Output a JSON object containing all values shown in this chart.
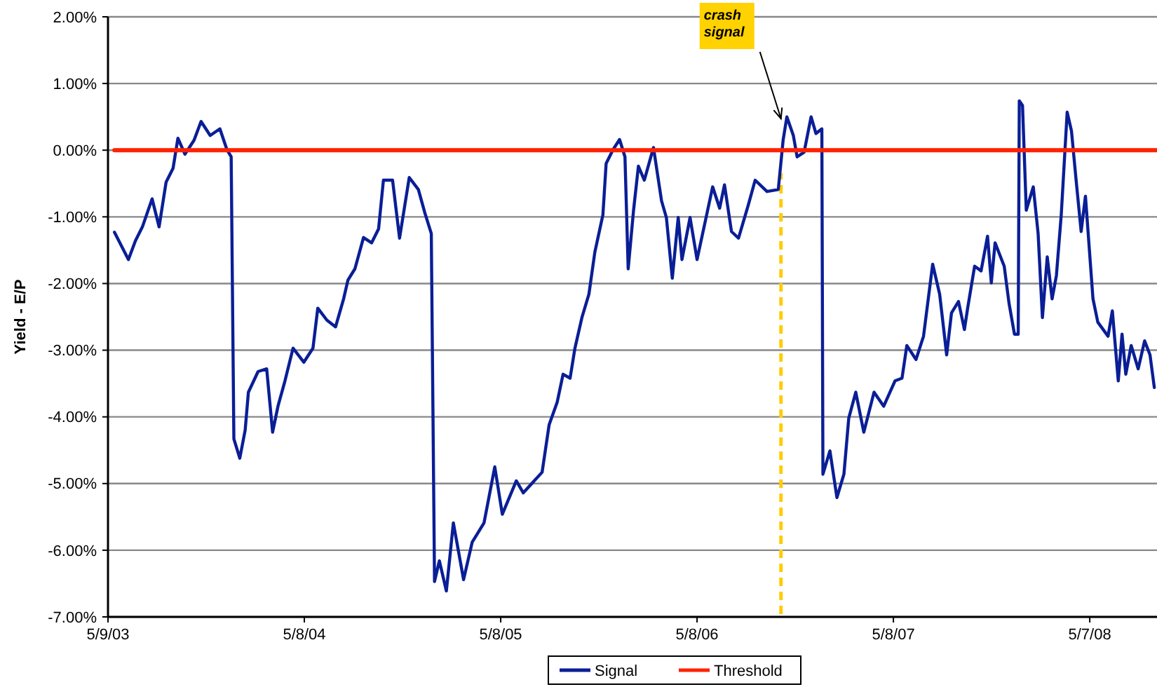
{
  "chart_data": {
    "type": "line",
    "ylabel": "Yield - E/P",
    "xlim": [
      "2003-05-09",
      "2008-09-09"
    ],
    "xticks": [
      {
        "value": "2003-05-09",
        "label": "5/9/03"
      },
      {
        "value": "2004-05-08",
        "label": "5/8/04"
      },
      {
        "value": "2005-05-08",
        "label": "5/8/05"
      },
      {
        "value": "2006-05-08",
        "label": "5/8/06"
      },
      {
        "value": "2007-05-08",
        "label": "5/8/07"
      },
      {
        "value": "2008-05-07",
        "label": "5/7/08"
      }
    ],
    "ylim": [
      -7,
      2
    ],
    "yticks": [
      {
        "value": -7,
        "label": "-7.00%"
      },
      {
        "value": -6,
        "label": "-6.00%"
      },
      {
        "value": -5,
        "label": "-5.00%"
      },
      {
        "value": -4,
        "label": "-4.00%"
      },
      {
        "value": -3,
        "label": "-3.00%"
      },
      {
        "value": -2,
        "label": "-2.00%"
      },
      {
        "value": -1,
        "label": "-1.00%"
      },
      {
        "value": 0,
        "label": "0.00%"
      },
      {
        "value": 1,
        "label": "1.00%"
      },
      {
        "value": 2,
        "label": "2.00%"
      }
    ],
    "grid": "y",
    "legend": "bottom",
    "marker": "none",
    "line_style": "solid",
    "series": [
      {
        "name": "Signal",
        "color": "#0a1e96",
        "x": [
          "2003-05-21",
          "2003-06-16",
          "2003-06-29",
          "2003-07-12",
          "2003-07-30",
          "2003-08-12",
          "2003-08-25",
          "2003-09-07",
          "2003-09-16",
          "2003-09-29",
          "2003-10-16",
          "2003-10-29",
          "2003-11-15",
          "2003-12-03",
          "2003-12-16",
          "2003-12-24",
          "2003-12-29",
          "2004-01-09",
          "2004-01-19",
          "2004-01-25",
          "2004-02-12",
          "2004-02-28",
          "2004-03-10",
          "2004-03-20",
          "2004-04-02",
          "2004-04-17",
          "2004-05-07",
          "2004-05-24",
          "2004-06-02",
          "2004-06-19",
          "2004-07-05",
          "2004-07-20",
          "2004-07-28",
          "2004-08-10",
          "2004-08-26",
          "2004-09-10",
          "2004-09-23",
          "2004-10-02",
          "2004-10-19",
          "2004-11-01",
          "2004-11-19",
          "2004-12-06",
          "2004-12-18",
          "2004-12-30",
          "2005-01-05",
          "2005-01-14",
          "2005-01-27",
          "2005-02-09",
          "2005-02-28",
          "2005-03-16",
          "2005-04-07",
          "2005-04-27",
          "2005-05-11",
          "2005-06-06",
          "2005-06-19",
          "2005-07-24",
          "2005-08-06",
          "2005-08-21",
          "2005-09-01",
          "2005-09-14",
          "2005-09-23",
          "2005-10-06",
          "2005-10-19",
          "2005-10-30",
          "2005-11-14",
          "2005-11-20",
          "2005-12-03",
          "2005-12-15",
          "2005-12-25",
          "2005-12-31",
          "2006-01-10",
          "2006-01-19",
          "2006-01-30",
          "2006-02-16",
          "2006-03-03",
          "2006-03-12",
          "2006-03-23",
          "2006-04-03",
          "2006-04-10",
          "2006-04-25",
          "2006-05-08",
          "2006-05-24",
          "2006-06-06",
          "2006-06-19",
          "2006-06-28",
          "2006-07-11",
          "2006-07-24",
          "2006-08-11",
          "2006-08-24",
          "2006-09-15",
          "2006-10-06",
          "2006-10-15",
          "2006-10-22",
          "2006-11-03",
          "2006-11-10",
          "2006-11-23",
          "2006-12-06",
          "2006-12-15",
          "2006-12-26",
          "2006-12-28",
          "2007-01-10",
          "2007-01-23",
          "2007-02-05",
          "2007-02-14",
          "2007-02-27",
          "2007-03-14",
          "2007-04-02",
          "2007-04-20",
          "2007-05-11",
          "2007-05-24",
          "2007-06-02",
          "2007-06-19",
          "2007-07-03",
          "2007-07-20",
          "2007-08-02",
          "2007-08-15",
          "2007-08-24",
          "2007-09-06",
          "2007-09-17",
          "2007-09-23",
          "2007-10-06",
          "2007-10-18",
          "2007-10-30",
          "2007-11-06",
          "2007-11-13",
          "2007-11-30",
          "2007-12-09",
          "2007-12-19",
          "2007-12-26",
          "2007-12-28",
          "2008-01-03",
          "2008-01-10",
          "2008-01-23",
          "2008-02-01",
          "2008-02-09",
          "2008-02-18",
          "2008-02-27",
          "2008-03-06",
          "2008-03-15",
          "2008-03-26",
          "2008-04-03",
          "2008-04-12",
          "2008-04-21",
          "2008-04-29",
          "2008-05-13",
          "2008-05-22",
          "2008-06-10",
          "2008-06-18",
          "2008-06-29",
          "2008-07-06",
          "2008-07-13",
          "2008-07-23",
          "2008-08-05",
          "2008-08-17",
          "2008-08-27",
          "2008-09-04"
        ],
        "values": [
          -1.23,
          -1.64,
          -1.36,
          -1.15,
          -0.73,
          -1.15,
          -0.48,
          -0.27,
          0.18,
          -0.06,
          0.15,
          0.43,
          0.22,
          0.32,
          0.01,
          -0.1,
          -4.33,
          -4.62,
          -4.2,
          -3.63,
          -3.32,
          -3.28,
          -4.23,
          -3.84,
          -3.46,
          -2.97,
          -3.18,
          -2.97,
          -2.37,
          -2.55,
          -2.65,
          -2.23,
          -1.95,
          -1.78,
          -1.31,
          -1.39,
          -1.18,
          -0.45,
          -0.45,
          -1.32,
          -0.41,
          -0.59,
          -0.94,
          -1.25,
          -6.47,
          -6.16,
          -6.61,
          -5.59,
          -6.44,
          -5.88,
          -5.59,
          -4.75,
          -5.46,
          -4.96,
          -5.14,
          -4.83,
          -4.12,
          -3.78,
          -3.36,
          -3.42,
          -2.97,
          -2.51,
          -2.16,
          -1.53,
          -0.97,
          -0.2,
          0.01,
          0.16,
          -0.1,
          -1.78,
          -0.9,
          -0.24,
          -0.45,
          0.04,
          -0.76,
          -1.01,
          -1.92,
          -1.01,
          -1.64,
          -1.01,
          -1.64,
          -1.04,
          -0.55,
          -0.87,
          -0.52,
          -1.22,
          -1.32,
          -0.83,
          -0.45,
          -0.62,
          -0.59,
          0.15,
          0.5,
          0.22,
          -0.1,
          -0.03,
          0.5,
          0.25,
          0.32,
          -4.86,
          -4.51,
          -5.21,
          -4.86,
          -4.02,
          -3.63,
          -4.23,
          -3.63,
          -3.84,
          -3.46,
          -3.42,
          -2.93,
          -3.14,
          -2.79,
          -1.71,
          -2.16,
          -3.07,
          -2.44,
          -2.27,
          -2.69,
          -2.37,
          -1.74,
          -1.81,
          -1.29,
          -1.99,
          -1.39,
          -1.74,
          -2.3,
          -2.76,
          -2.76,
          0.74,
          0.67,
          -0.9,
          -0.55,
          -1.25,
          -2.51,
          -1.6,
          -2.23,
          -1.88,
          -0.97,
          0.57,
          0.29,
          -0.48,
          -1.22,
          -0.69,
          -2.23,
          -2.58,
          -2.79,
          -2.41,
          -3.46,
          -2.76,
          -3.36,
          -2.93,
          -3.28,
          -2.86,
          -3.07,
          -3.56
        ]
      },
      {
        "name": "Threshold",
        "color": "#ff2200",
        "x": [
          "2003-05-21",
          "2008-09-09"
        ],
        "values": [
          0,
          0
        ]
      }
    ],
    "ref_lines": [
      {
        "axis": "x",
        "value": "2006-10-11",
        "color": "#ffcc00",
        "line_style": "dashed"
      }
    ],
    "annotations": [
      "crash signal"
    ]
  }
}
